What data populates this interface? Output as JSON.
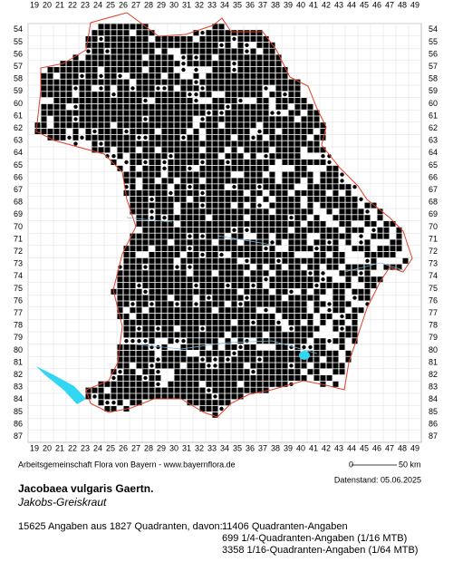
{
  "x_labels": [
    19,
    20,
    21,
    22,
    23,
    24,
    25,
    26,
    27,
    28,
    29,
    30,
    31,
    32,
    33,
    34,
    35,
    36,
    37,
    38,
    39,
    40,
    41,
    42,
    43,
    44,
    45,
    46,
    47,
    48,
    49
  ],
  "y_labels": [
    54,
    55,
    56,
    57,
    58,
    59,
    60,
    61,
    62,
    63,
    64,
    65,
    66,
    67,
    68,
    69,
    70,
    71,
    72,
    73,
    74,
    75,
    76,
    77,
    78,
    79,
    80,
    81,
    82,
    83,
    84,
    85,
    86,
    87
  ],
  "credit": "Arbeitsgemeinschaft Flora von Bayern - www.bayernflora.de",
  "scale": {
    "start": "0",
    "end": "50 km"
  },
  "date": "Datenstand: 05.06.2025",
  "title": "Jacobaea vulgaris Gaertn.",
  "subtitle": "Jakobs-Greiskraut",
  "summary": "15625 Angaben aus 1827 Quadranten, davon:",
  "counts": [
    "11406 Quadranten-Angaben",
    "699 1/4-Quadranten-Angaben (1/16 MTB)",
    "3358 1/16-Quadranten-Angaben (1/64 MTB)"
  ]
}
